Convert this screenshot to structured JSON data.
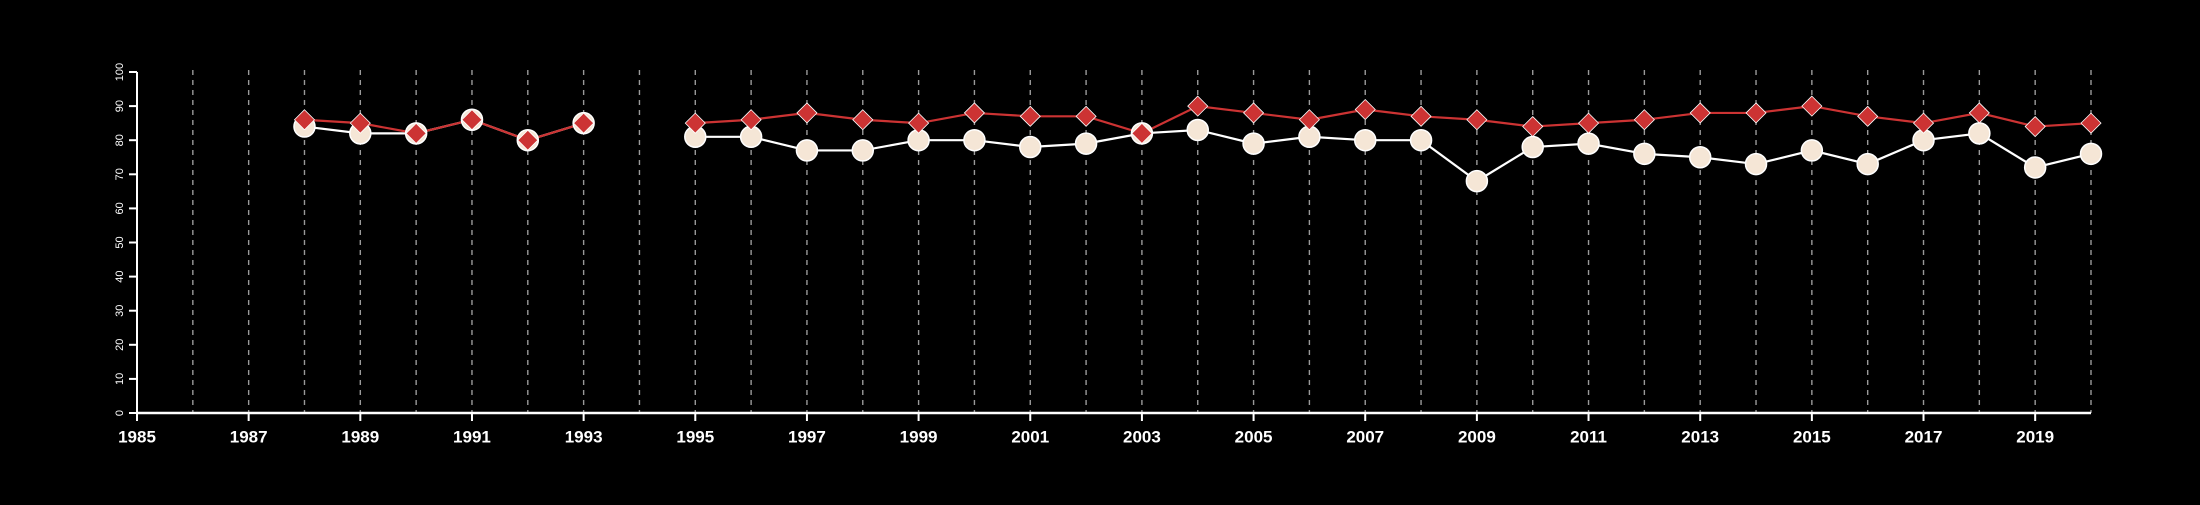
{
  "chart_data": {
    "type": "line",
    "title": "",
    "xlabel": "",
    "ylabel": "",
    "xlim": [
      1985,
      2020
    ],
    "ylim": [
      0,
      100
    ],
    "x_ticks": [
      1985,
      1987,
      1989,
      1991,
      1993,
      1995,
      1997,
      1999,
      2001,
      2003,
      2005,
      2007,
      2009,
      2011,
      2013,
      2015,
      2017,
      2019
    ],
    "x_tick_labels": [
      "1985",
      "1987",
      "1989",
      "1991",
      "1993",
      "1995",
      "1997",
      "1999",
      "2001",
      "2003",
      "2005",
      "2007",
      "2009",
      "2011",
      "2013",
      "2015",
      "2017",
      "2019"
    ],
    "y_ticks": [
      0,
      10,
      20,
      30,
      40,
      50,
      60,
      70,
      80,
      90,
      100
    ],
    "y_tick_labels": [
      "0",
      "10",
      "20",
      "30",
      "40",
      "50",
      "60",
      "70",
      "80",
      "90",
      "100"
    ],
    "vertical_gridlines": [
      1986,
      1987,
      1988,
      1989,
      1990,
      1991,
      1992,
      1993,
      1994,
      1995,
      1996,
      1997,
      1998,
      1999,
      2000,
      2001,
      2002,
      2003,
      2004,
      2005,
      2006,
      2007,
      2008,
      2009,
      2010,
      2011,
      2012,
      2013,
      2014,
      2015,
      2016,
      2017,
      2018,
      2019,
      2020
    ],
    "grid": "vertical dashed",
    "legend": "none",
    "series": [
      {
        "marker": "circle",
        "color": "#f5e6d6",
        "line_color": "#ffffff",
        "segments": [
          {
            "x": [
              1988,
              1989,
              1990,
              1991,
              1992,
              1993
            ],
            "y": [
              84,
              82,
              82,
              86,
              80,
              85
            ]
          },
          {
            "x": [
              1995,
              1996,
              1997,
              1998,
              1999,
              2000,
              2001,
              2002,
              2003,
              2004,
              2005,
              2006,
              2007,
              2008,
              2009,
              2010,
              2011,
              2012,
              2013,
              2014,
              2015,
              2016,
              2017,
              2018,
              2019,
              2020
            ],
            "y": [
              81,
              81,
              77,
              77,
              80,
              80,
              78,
              79,
              82,
              83,
              79,
              81,
              80,
              80,
              68,
              78,
              79,
              76,
              75,
              73,
              77,
              73,
              80,
              82,
              72,
              76
            ]
          }
        ]
      },
      {
        "marker": "diamond",
        "color": "#cc3333",
        "line_color": "#cc3333",
        "segments": [
          {
            "x": [
              1988,
              1989,
              1990,
              1991,
              1992,
              1993
            ],
            "y": [
              86,
              85,
              82,
              86,
              80,
              85
            ]
          },
          {
            "x": [
              1995,
              1996,
              1997,
              1998,
              1999,
              2000,
              2001,
              2002,
              2003,
              2004,
              2005,
              2006,
              2007,
              2008,
              2009,
              2010,
              2011,
              2012,
              2013,
              2014,
              2015,
              2016,
              2017,
              2018,
              2019,
              2020
            ],
            "y": [
              85,
              86,
              88,
              86,
              85,
              88,
              87,
              87,
              82,
              90,
              88,
              86,
              89,
              87,
              86,
              84,
              85,
              86,
              88,
              88,
              90,
              87,
              85,
              88,
              84,
              85
            ]
          }
        ]
      }
    ]
  }
}
